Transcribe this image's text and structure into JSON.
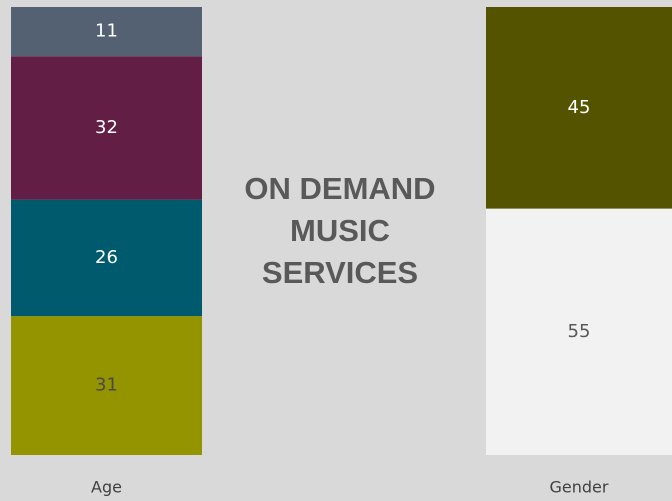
{
  "chart_data": {
    "type": "bar",
    "stacked": true,
    "title": "ON DEMAND MUSIC SERVICES",
    "categories": [
      "Age",
      "Gender"
    ],
    "series": [
      {
        "color": "#949400",
        "values": [
          31,
          null
        ]
      },
      {
        "color": "#005a6e",
        "values": [
          26,
          null
        ]
      },
      {
        "color": "#621e44",
        "values": [
          32,
          null
        ]
      },
      {
        "color": "#536173",
        "values": [
          11,
          null
        ]
      },
      {
        "color": "#f2f2f2",
        "values": [
          null,
          55
        ]
      },
      {
        "color": "#545400",
        "values": [
          null,
          45
        ]
      }
    ],
    "ylim": [
      0,
      100
    ]
  }
}
